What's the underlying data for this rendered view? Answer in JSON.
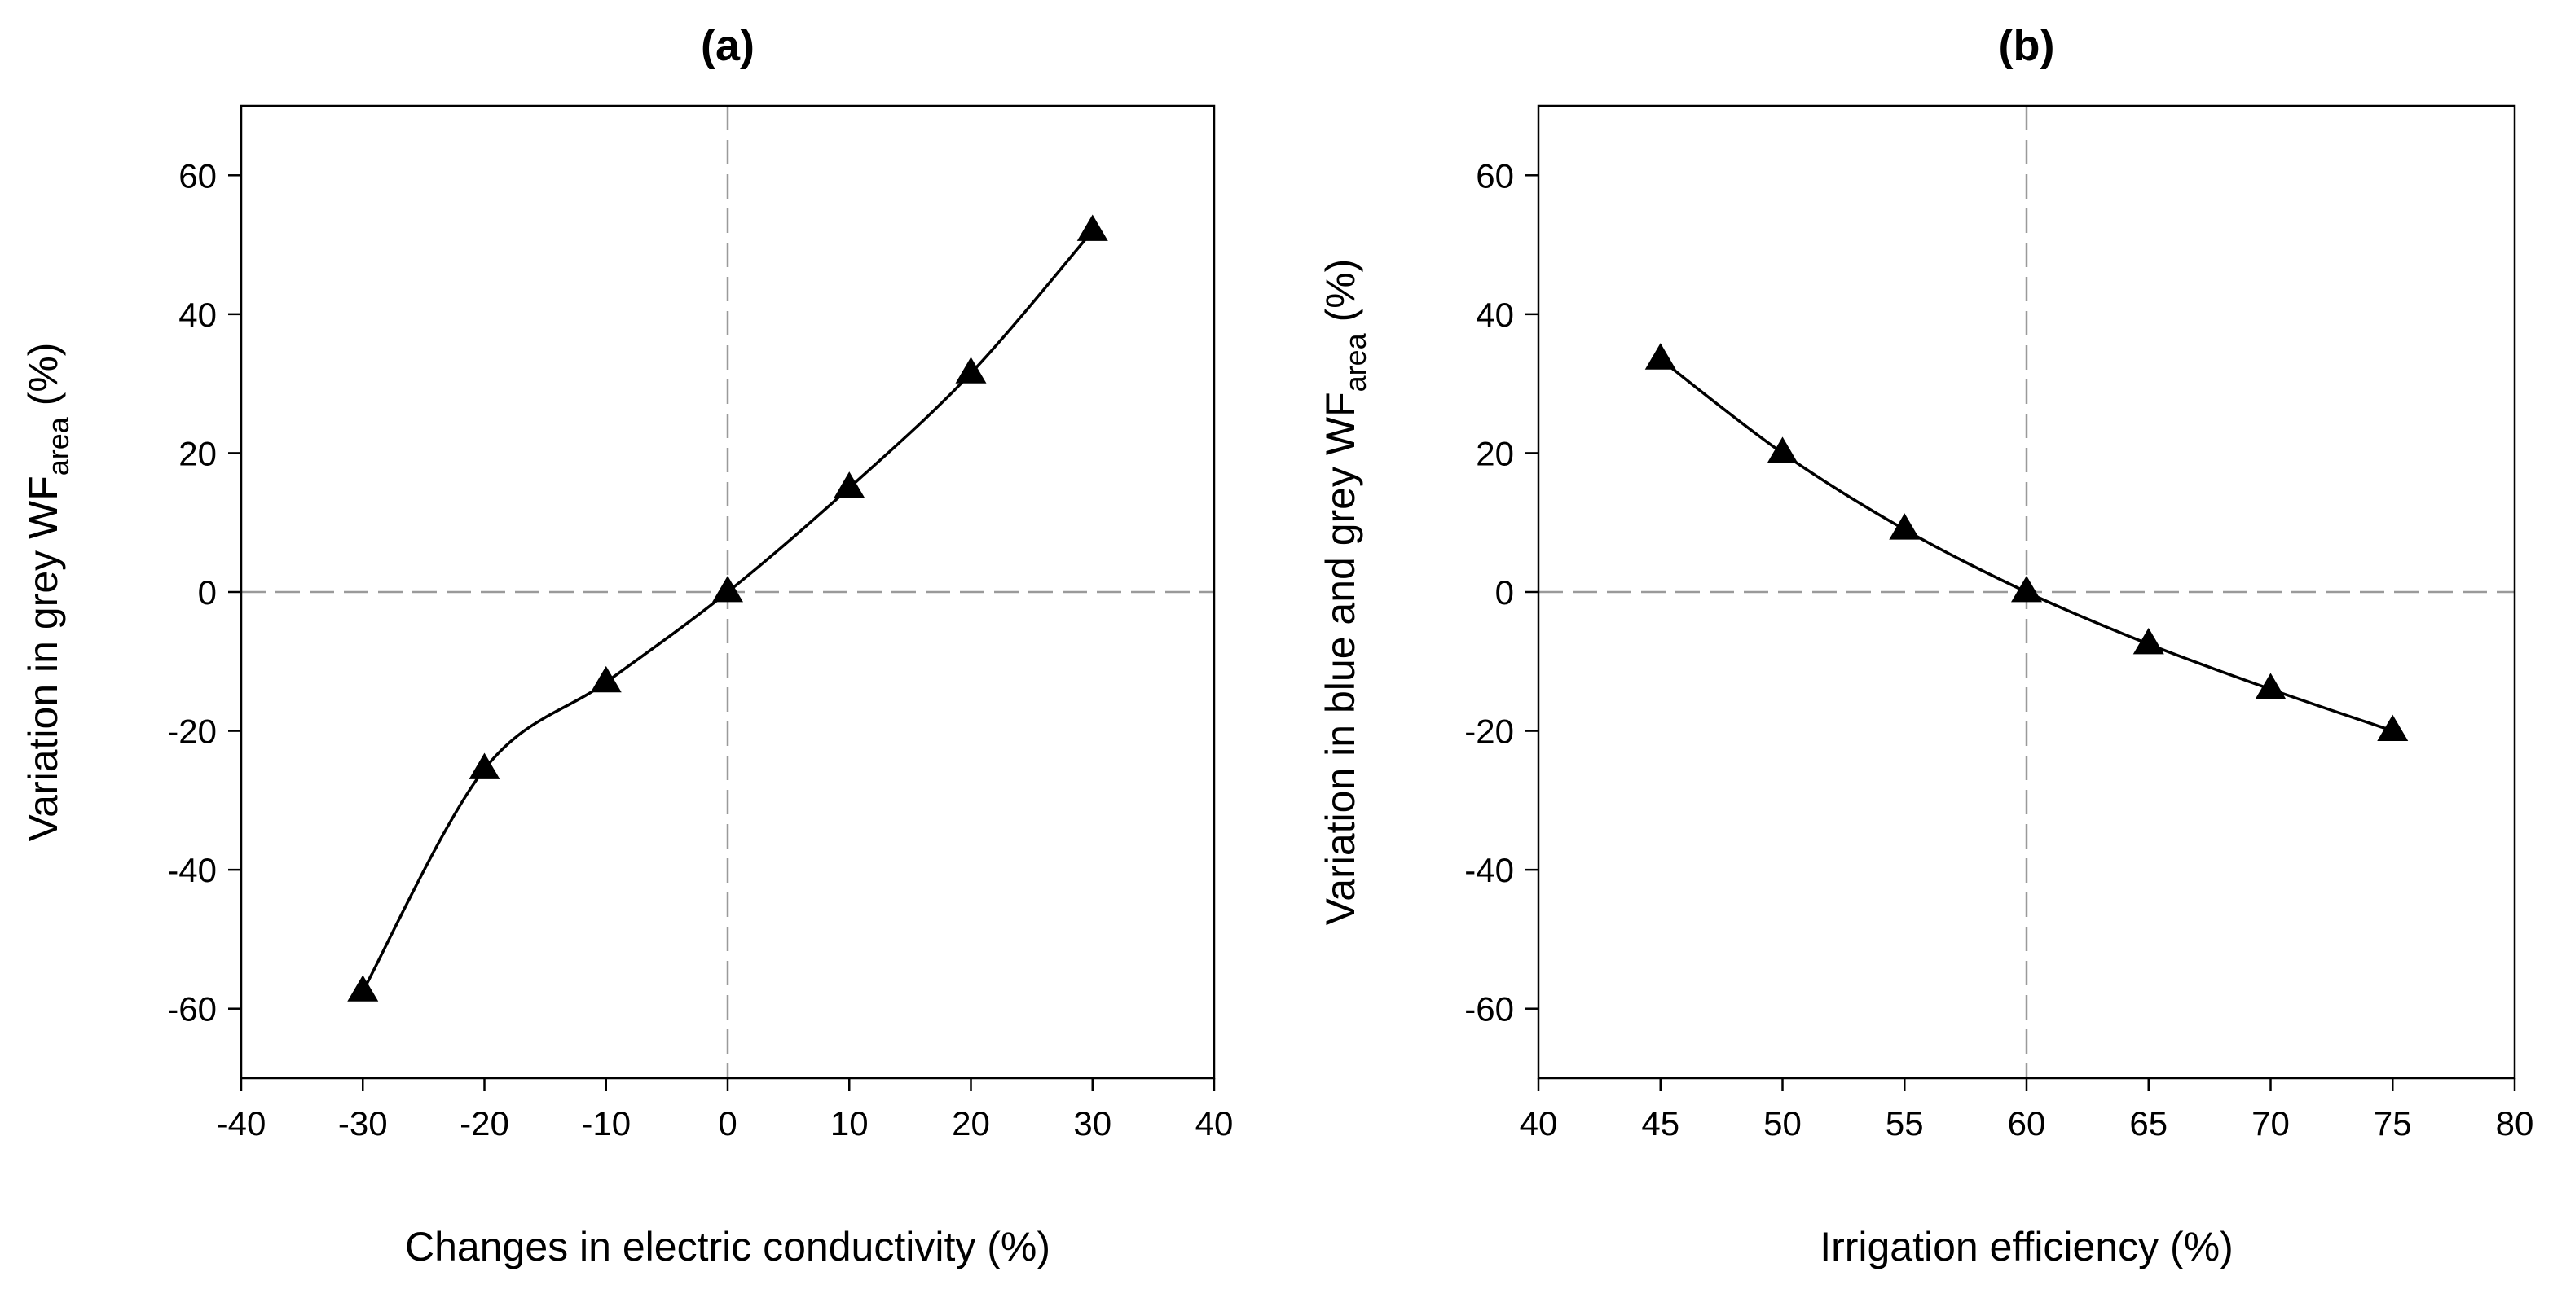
{
  "chart_data": [
    {
      "id": "a",
      "type": "line",
      "title": "(a)",
      "xlabel": "Changes in electric conductivity (%)",
      "ylabel_main": "Variation in grey WF",
      "ylabel_sub": "area",
      "ylabel_end": " (%)",
      "xlim": [
        -40,
        40
      ],
      "ylim": [
        -70,
        70
      ],
      "xticks": [
        -40,
        -30,
        -20,
        -10,
        0,
        10,
        20,
        30,
        40
      ],
      "yticks": [
        -60,
        -40,
        -20,
        0,
        20,
        40,
        60
      ],
      "ref_x": 0,
      "ref_y": 0,
      "grid": false,
      "marker": "triangle",
      "series": [
        {
          "name": "grey WF area",
          "x": [
            -30,
            -20,
            -10,
            0,
            10,
            20,
            30
          ],
          "y": [
            -57.5,
            -25.5,
            -13,
            0,
            15,
            31.5,
            52
          ]
        }
      ]
    },
    {
      "id": "b",
      "type": "line",
      "title": "(b)",
      "xlabel": "Irrigation efficiency (%)",
      "ylabel_main": "Variation in blue and grey WF",
      "ylabel_sub": "area",
      "ylabel_end": " (%)",
      "xlim": [
        40,
        80
      ],
      "ylim": [
        -70,
        70
      ],
      "xticks": [
        40,
        45,
        50,
        55,
        60,
        65,
        70,
        75,
        80
      ],
      "yticks": [
        -60,
        -40,
        -20,
        0,
        20,
        40,
        60
      ],
      "ref_x": 60,
      "ref_y": 0,
      "grid": false,
      "marker": "triangle",
      "series": [
        {
          "name": "blue and grey WF area",
          "x": [
            45,
            50,
            55,
            60,
            65,
            70,
            75
          ],
          "y": [
            33.5,
            20,
            9,
            0,
            -7.5,
            -14,
            -20
          ]
        }
      ]
    }
  ]
}
